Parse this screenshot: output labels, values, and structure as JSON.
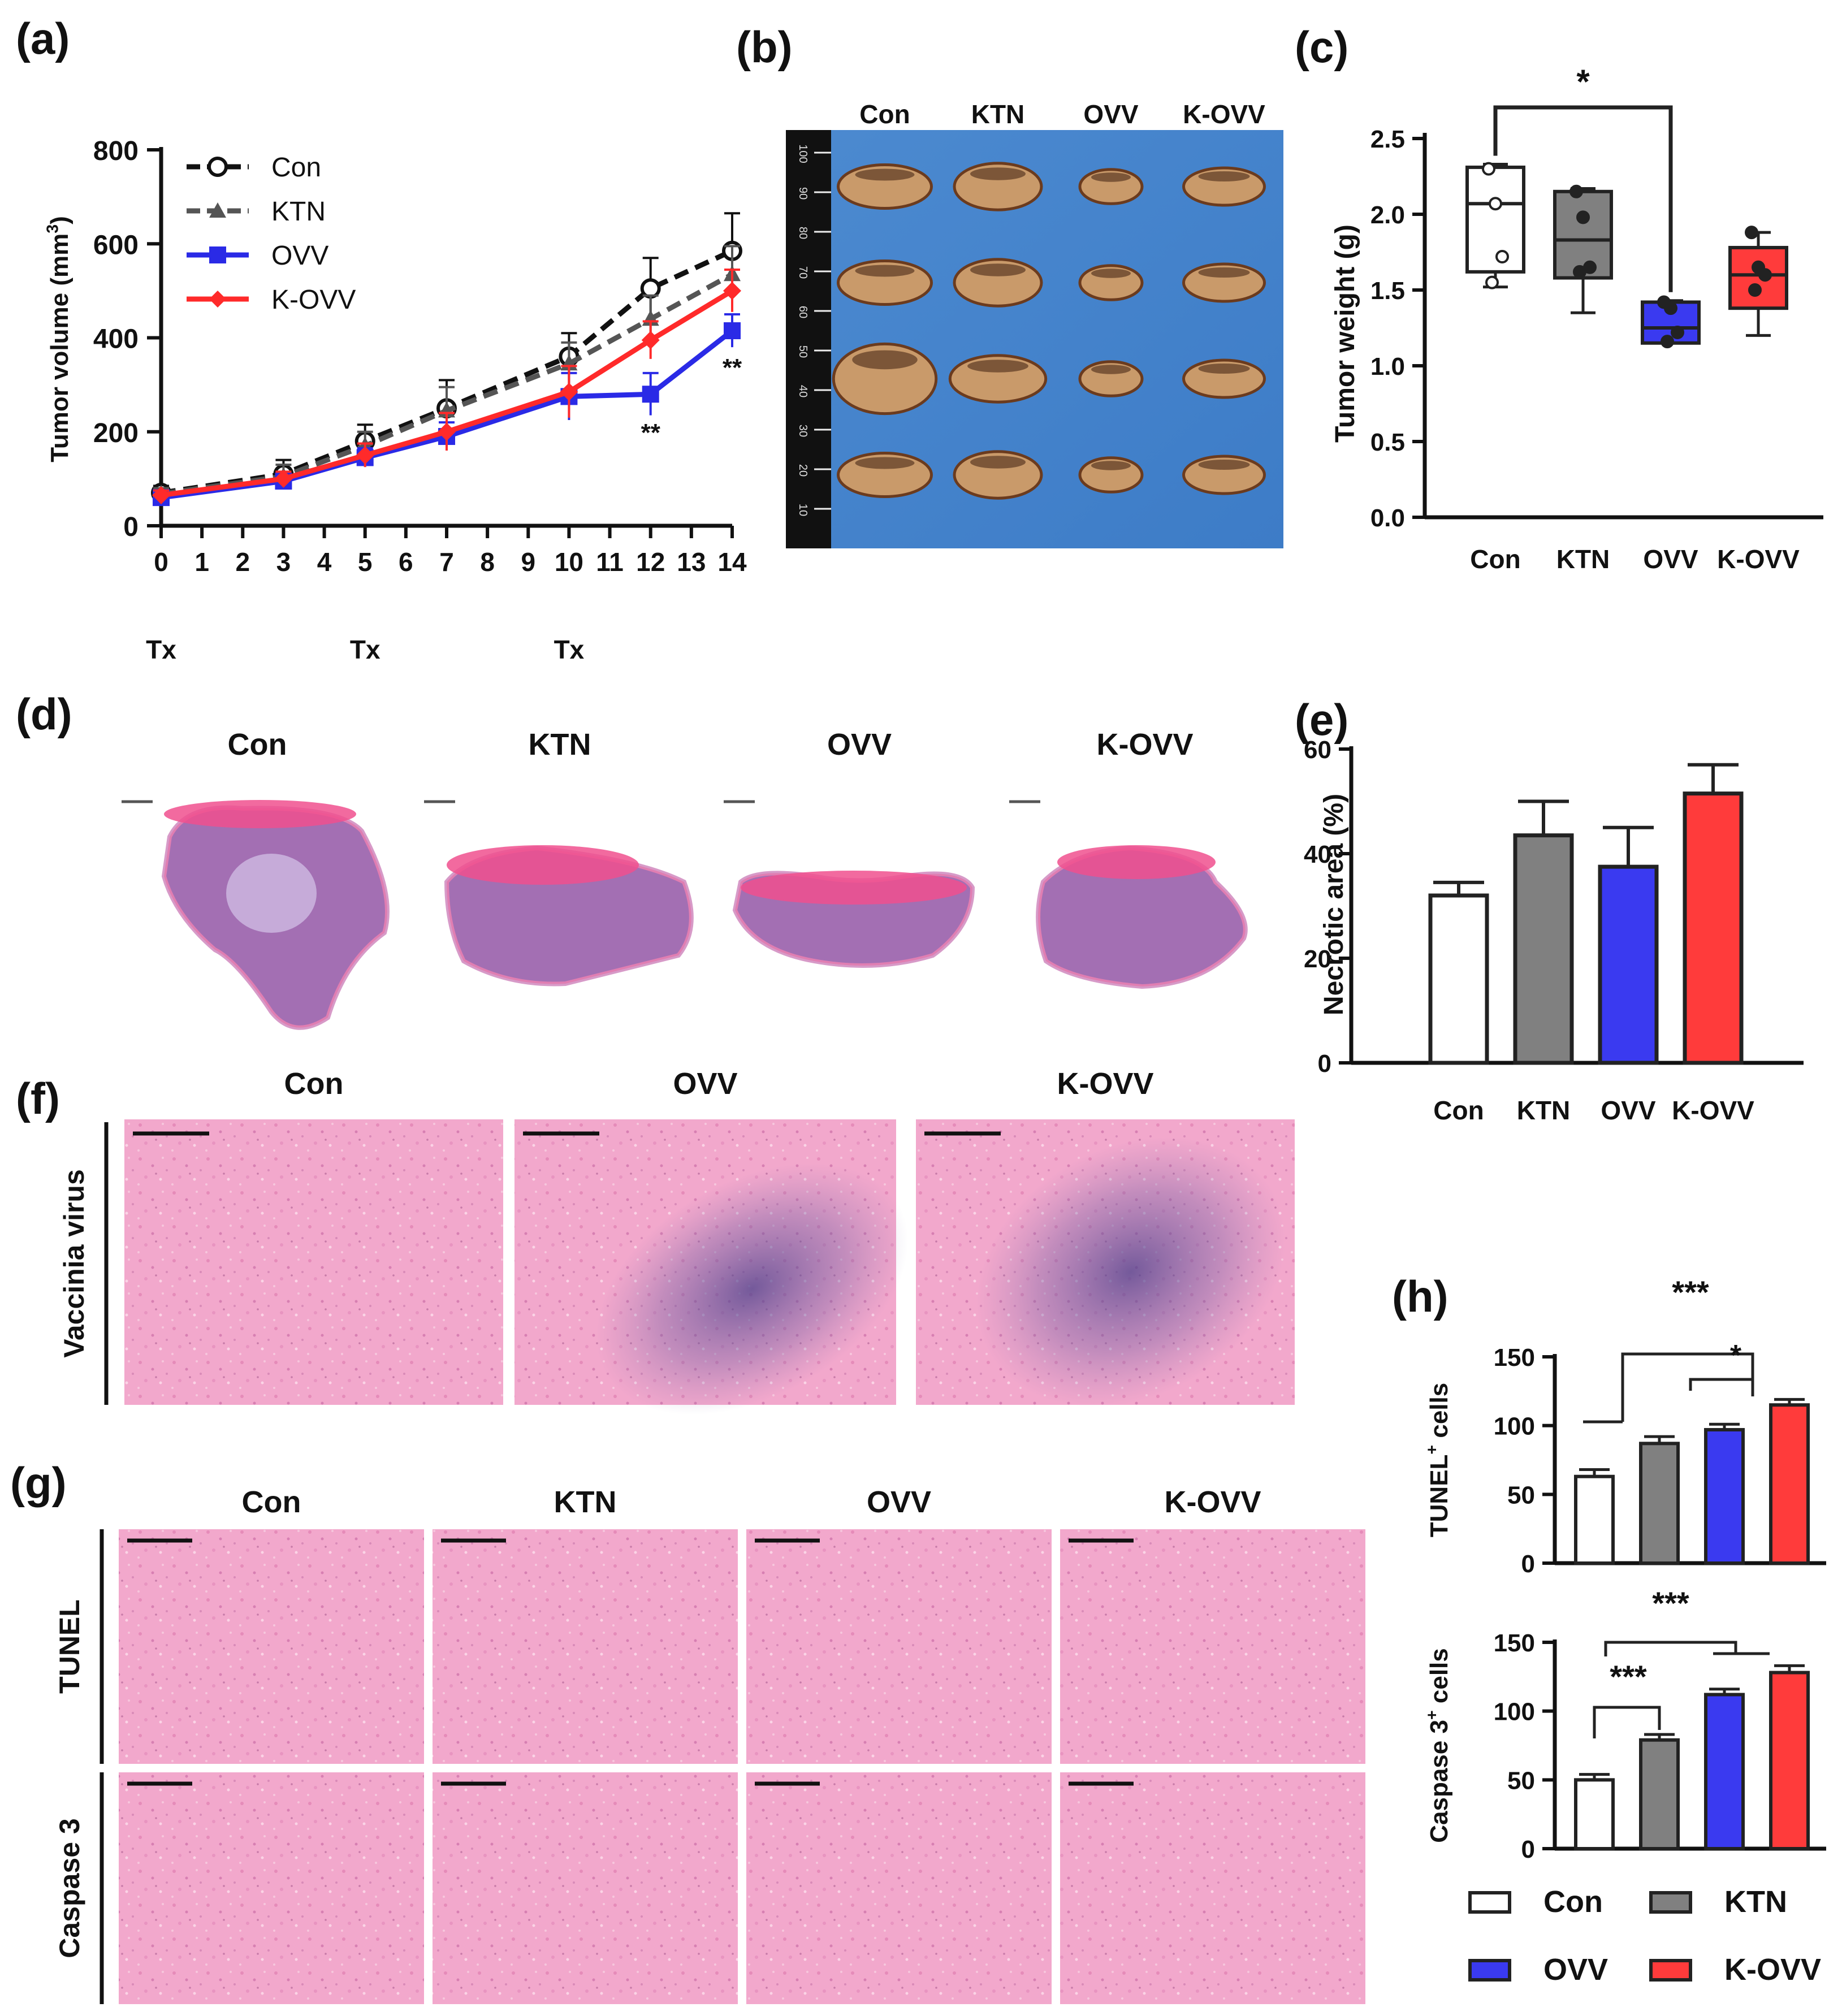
{
  "figure": {
    "panel_labels": [
      "(a)",
      "(b)",
      "(c)",
      "(d)",
      "(e)",
      "(f)",
      "(g)",
      "(h)"
    ],
    "groups": [
      "Con",
      "KTN",
      "OVV",
      "K-OVV"
    ],
    "colors": {
      "Con": "#ffffff",
      "KTN": "#808080",
      "OVV": "#3a3af0",
      "K-OVV": "#ff3b3b",
      "axis": "#111111",
      "dark": "#222222"
    },
    "photo_b": {
      "headers": [
        "Con",
        "KTN",
        "OVV",
        "K-OVV"
      ],
      "ruler_ticks": [
        "100",
        "90",
        "80",
        "70",
        "60",
        "50",
        "40",
        "30",
        "20",
        "10"
      ]
    },
    "histology_d": {
      "headers": [
        "Con",
        "KTN",
        "OVV",
        "K-OVV"
      ]
    },
    "histology_f": {
      "row_label": "Vaccinia virus",
      "headers": [
        "Con",
        "OVV",
        "K-OVV"
      ]
    },
    "histology_g": {
      "row_labels": [
        "TUNEL",
        "Caspase 3"
      ],
      "headers": [
        "Con",
        "KTN",
        "OVV",
        "K-OVV"
      ]
    },
    "legend_h": [
      "Con",
      "KTN",
      "OVV",
      "K-OVV"
    ]
  },
  "chart_data": [
    {
      "id": "a",
      "type": "line",
      "xlabel": "",
      "ylabel": "Tumor volume (mm³)",
      "ylabel_parts": [
        "Tumor volume (mm",
        "3",
        ")"
      ],
      "x_ticks": [
        0,
        1,
        2,
        3,
        4,
        5,
        6,
        7,
        8,
        9,
        10,
        11,
        12,
        13,
        14
      ],
      "y_ticks": [
        0,
        200,
        400,
        600,
        800
      ],
      "xlim": [
        0,
        14
      ],
      "ylim": [
        0,
        800
      ],
      "treatment_days": [
        0,
        5,
        10
      ],
      "treatment_label": "Tx",
      "x": [
        0,
        3,
        5,
        7,
        10,
        12,
        14
      ],
      "series": [
        {
          "name": "Con",
          "color": "#111111",
          "dash": true,
          "marker": "circle-open",
          "values": [
            70,
            110,
            180,
            250,
            360,
            505,
            585
          ],
          "errors": [
            15,
            30,
            35,
            60,
            50,
            65,
            80
          ]
        },
        {
          "name": "KTN",
          "color": "#555555",
          "dash": true,
          "marker": "triangle",
          "values": [
            68,
            105,
            170,
            245,
            345,
            440,
            535
          ],
          "errors": [
            12,
            25,
            30,
            50,
            45,
            50,
            60
          ]
        },
        {
          "name": "OVV",
          "color": "#2a2ae6",
          "dash": false,
          "marker": "square",
          "values": [
            60,
            95,
            145,
            190,
            275,
            280,
            415
          ],
          "errors": [
            10,
            15,
            20,
            30,
            50,
            45,
            35
          ]
        },
        {
          "name": "K-OVV",
          "color": "#ff2a2a",
          "dash": false,
          "marker": "diamond",
          "values": [
            65,
            100,
            150,
            200,
            285,
            395,
            500
          ],
          "errors": [
            10,
            15,
            25,
            40,
            55,
            40,
            45
          ]
        }
      ],
      "annotations": [
        {
          "x": 12,
          "text": "**"
        },
        {
          "x": 14,
          "text": "**"
        }
      ]
    },
    {
      "id": "c",
      "type": "box",
      "ylabel": "Tumor weight (g)",
      "categories": [
        "Con",
        "KTN",
        "OVV",
        "K-OVV"
      ],
      "y_ticks": [
        "0.0",
        "0.5",
        "1.0",
        "1.5",
        "2.0",
        "2.5"
      ],
      "ylim": [
        0,
        2.5
      ],
      "boxes": [
        {
          "min": 1.52,
          "q1": 1.62,
          "median": 2.07,
          "q3": 2.31,
          "max": 2.33,
          "points": [
            2.3,
            2.07,
            1.72,
            1.55
          ]
        },
        {
          "min": 1.35,
          "q1": 1.58,
          "median": 1.83,
          "q3": 2.15,
          "max": 2.17,
          "points": [
            2.15,
            1.98,
            1.65,
            1.62
          ]
        },
        {
          "min": 1.15,
          "q1": 1.15,
          "median": 1.25,
          "q3": 1.42,
          "max": 1.43,
          "points": [
            1.42,
            1.38,
            1.22,
            1.16
          ]
        },
        {
          "min": 1.2,
          "q1": 1.38,
          "median": 1.6,
          "q3": 1.78,
          "max": 1.88,
          "points": [
            1.88,
            1.65,
            1.6,
            1.5
          ]
        }
      ],
      "significance": [
        {
          "from": "Con",
          "to": "OVV",
          "text": "*"
        }
      ]
    },
    {
      "id": "e",
      "type": "bar",
      "ylabel": "Necrotic area  (%)",
      "categories": [
        "Con",
        "KTN",
        "OVV",
        "K-OVV"
      ],
      "values": [
        32,
        43.5,
        37.5,
        51.5
      ],
      "errors": [
        2.5,
        6.5,
        7.5,
        5.5
      ],
      "y_ticks": [
        0,
        20,
        40,
        60
      ],
      "ylim": [
        0,
        60
      ]
    },
    {
      "id": "h1",
      "type": "bar",
      "ylabel": "TUNEL⁺ cells",
      "ylabel_parts": [
        "TUNEL",
        "+",
        " cells"
      ],
      "categories": [
        "Con",
        "KTN",
        "OVV",
        "K-OVV"
      ],
      "values": [
        63,
        87,
        97,
        115
      ],
      "errors": [
        5,
        5,
        4,
        4
      ],
      "y_ticks": [
        0,
        50,
        100,
        150
      ],
      "ylim": [
        0,
        150
      ],
      "significance": [
        {
          "text": "***"
        },
        {
          "text": "*"
        }
      ]
    },
    {
      "id": "h2",
      "type": "bar",
      "ylabel": "Caspase 3⁺ cells",
      "ylabel_parts": [
        "Caspase 3",
        "+",
        " cells"
      ],
      "categories": [
        "Con",
        "KTN",
        "OVV",
        "K-OVV"
      ],
      "values": [
        50,
        79,
        112,
        128
      ],
      "errors": [
        4,
        4,
        4,
        5
      ],
      "y_ticks": [
        0,
        50,
        100,
        150
      ],
      "ylim": [
        0,
        150
      ],
      "significance": [
        {
          "text": "***"
        },
        {
          "text": "***"
        }
      ]
    }
  ]
}
